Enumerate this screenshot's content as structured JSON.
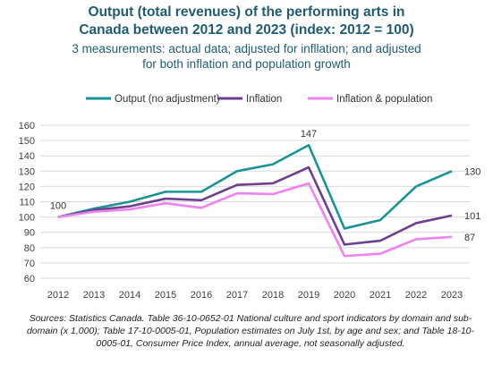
{
  "title_lines": [
    "Output (total revenues) of the performing arts in",
    "Canada between 2012 and 2023 (index: 2012 = 100)"
  ],
  "subtitle_lines": [
    "3 measurements: actual data; adjusted for infllation; and adjusted",
    "for both inflation and population growth"
  ],
  "source": "Sources: Statistics Canada. Table 36-10-0652-01  National culture and sport indicators by domain and sub-domain (x 1,000); Table 17-10-0005-01, Population estimates on July 1st, by age and sex; and Table 18-10-0005-01, Consumer Price Index, annual average, not seasonally adjusted.",
  "chart_data": {
    "type": "line",
    "x": [
      "2012",
      "2013",
      "2014",
      "2015",
      "2016",
      "2017",
      "2018",
      "2019",
      "2020",
      "2021",
      "2022",
      "2023"
    ],
    "ylim": [
      60,
      160
    ],
    "yticks": [
      60,
      70,
      80,
      90,
      100,
      110,
      120,
      130,
      140,
      150,
      160
    ],
    "grid": true,
    "legend_position": "top",
    "series": [
      {
        "name": "Output (no adjustment)",
        "color": "#1a9396",
        "values": [
          100,
          105.5,
          110,
          116.5,
          116.5,
          130,
          134.5,
          147,
          92.5,
          98,
          120,
          130
        ]
      },
      {
        "name": "Inflation",
        "color": "#6d3f8e",
        "values": [
          100,
          104.5,
          107,
          112,
          111,
          121,
          122,
          132.5,
          82,
          84.5,
          96,
          101
        ]
      },
      {
        "name": "Inflation & population",
        "color": "#ee82ee",
        "values": [
          100,
          103.5,
          105,
          109,
          106,
          115.5,
          115,
          122,
          74.5,
          76,
          85.5,
          87
        ]
      }
    ],
    "annotations": [
      {
        "label": "100",
        "series": 0,
        "index": 0,
        "placement": "above"
      },
      {
        "label": "147",
        "series": 0,
        "index": 7,
        "placement": "above"
      },
      {
        "label": "130",
        "series": 0,
        "index": 11,
        "placement": "right"
      },
      {
        "label": "101",
        "series": 1,
        "index": 11,
        "placement": "right"
      },
      {
        "label": "87",
        "series": 2,
        "index": 11,
        "placement": "right"
      }
    ]
  }
}
